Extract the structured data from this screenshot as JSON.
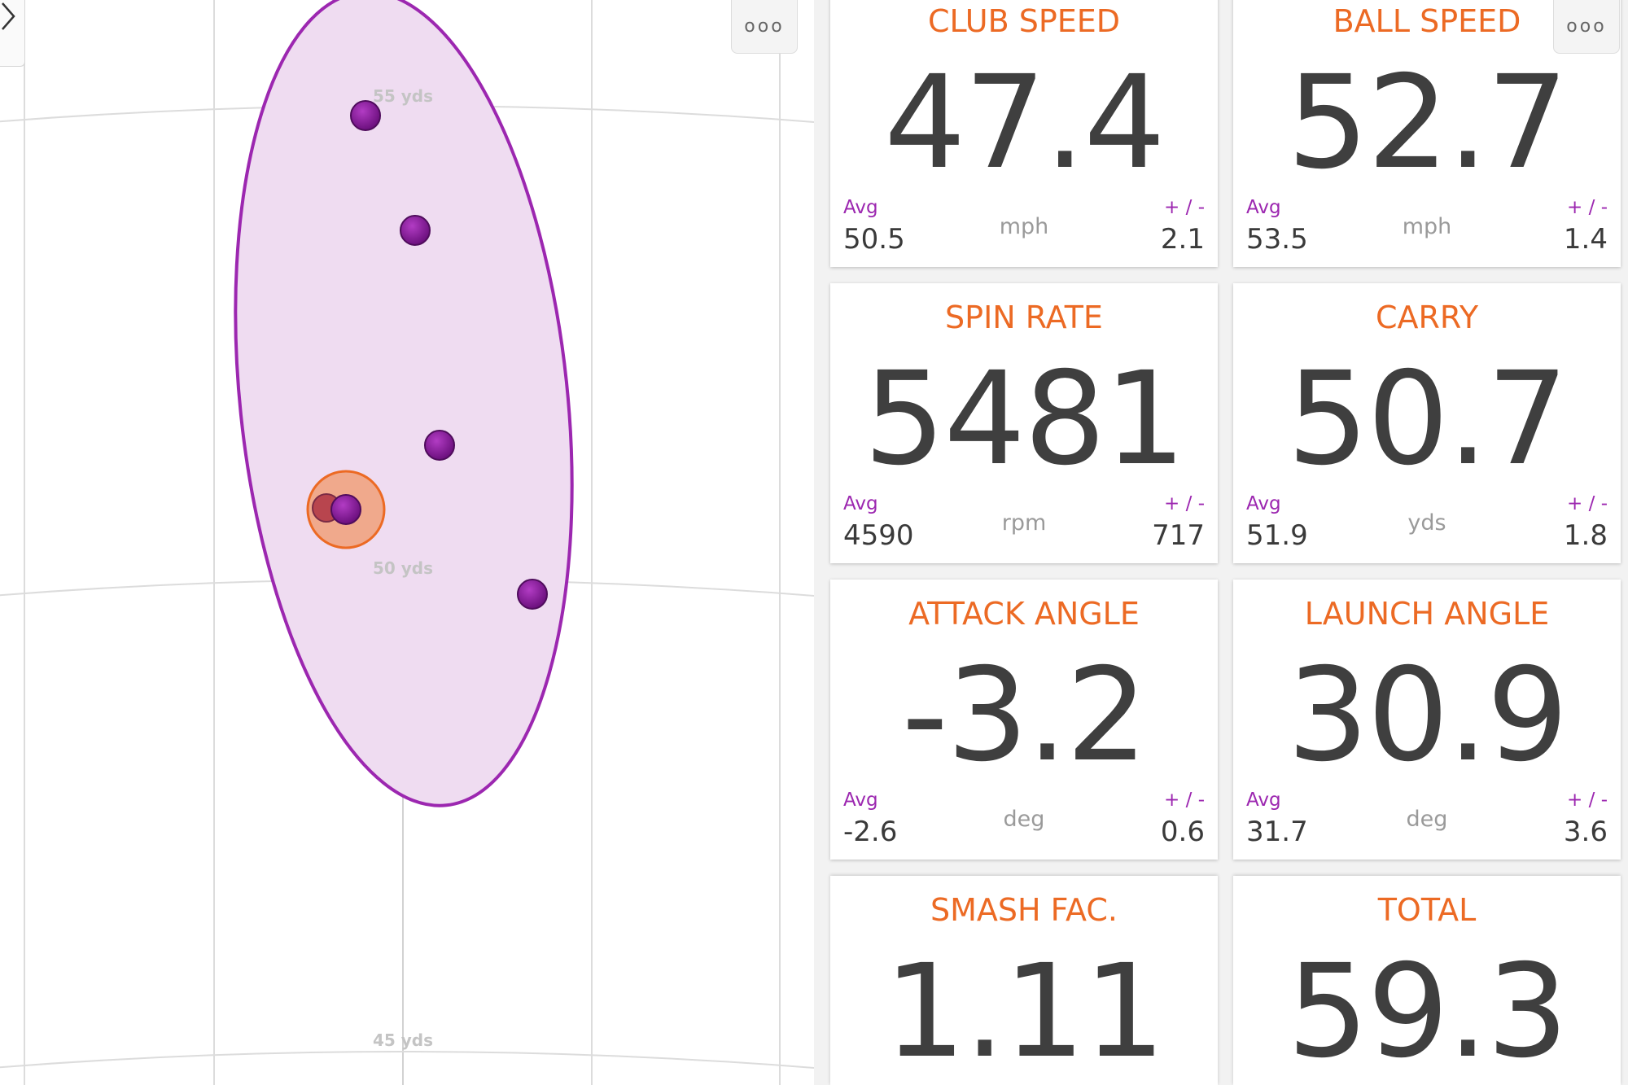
{
  "dispersion": {
    "distance_labels": [
      "55 yds",
      "50 yds",
      "45 yds"
    ],
    "shot_count": 6,
    "colors": {
      "ellipse_fill": "#efdcf1",
      "ellipse_stroke": "#9c27b0",
      "shot": "#8a1a9c",
      "selected_ring": "#f0a07a",
      "selected_ring_stroke": "#ec6a24",
      "grid": "#dcdcdc"
    },
    "icons": {
      "collapse": "chevron-right-icon",
      "more": "more-options-icon"
    }
  },
  "more_label": "ooo",
  "metrics": [
    {
      "title": "CLUB SPEED",
      "value": "47.4",
      "avg_label": "Avg",
      "avg": "50.5",
      "unit": "mph",
      "pm_label": "+ / -",
      "pm": "2.1"
    },
    {
      "title": "BALL SPEED",
      "value": "52.7",
      "avg_label": "Avg",
      "avg": "53.5",
      "unit": "mph",
      "pm_label": "+ / -",
      "pm": "1.4"
    },
    {
      "title": "SPIN RATE",
      "value": "5481",
      "avg_label": "Avg",
      "avg": "4590",
      "unit": "rpm",
      "pm_label": "+ / -",
      "pm": "717"
    },
    {
      "title": "CARRY",
      "value": "50.7",
      "avg_label": "Avg",
      "avg": "51.9",
      "unit": "yds",
      "pm_label": "+ / -",
      "pm": "1.8"
    },
    {
      "title": "ATTACK ANGLE",
      "value": "-3.2",
      "avg_label": "Avg",
      "avg": "-2.6",
      "unit": "deg",
      "pm_label": "+ / -",
      "pm": "0.6"
    },
    {
      "title": "LAUNCH ANGLE",
      "value": "30.9",
      "avg_label": "Avg",
      "avg": "31.7",
      "unit": "deg",
      "pm_label": "+ / -",
      "pm": "3.6"
    },
    {
      "title": "SMASH FAC.",
      "value": "1.11"
    },
    {
      "title": "TOTAL",
      "value": "59.3"
    }
  ]
}
